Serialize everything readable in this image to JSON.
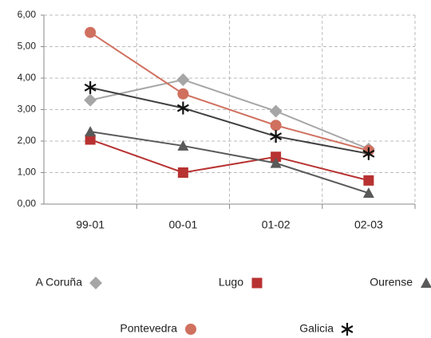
{
  "chart_data": {
    "type": "line",
    "categories": [
      "99-01",
      "00-01",
      "01-02",
      "02-03"
    ],
    "series": [
      {
        "name": "A Coruña",
        "color": "#a6a6a6",
        "marker": "diamond",
        "values": [
          3.3,
          3.95,
          2.95,
          1.75
        ]
      },
      {
        "name": "Lugo",
        "color": "#b83232",
        "marker": "square",
        "values": [
          2.05,
          1.0,
          1.5,
          0.75
        ]
      },
      {
        "name": "Ourense",
        "color": "#595959",
        "marker": "triangle",
        "values": [
          2.3,
          1.85,
          1.3,
          0.35
        ]
      },
      {
        "name": "Pontevedra",
        "color": "#d0705f",
        "marker": "circle",
        "values": [
          5.45,
          3.5,
          2.5,
          1.7
        ]
      },
      {
        "name": "Galicia",
        "color": "#404040",
        "marker": "asterisk",
        "values": [
          3.7,
          3.05,
          2.15,
          1.6
        ]
      }
    ],
    "ylim": [
      0,
      6
    ],
    "yticks": [
      {
        "value": 0,
        "label": "0,00"
      },
      {
        "value": 1,
        "label": "1,00"
      },
      {
        "value": 2,
        "label": "2,00"
      },
      {
        "value": 3,
        "label": "3,00"
      },
      {
        "value": 4,
        "label": "4,00"
      },
      {
        "value": 5,
        "label": "5,00"
      },
      {
        "value": 6,
        "label": "6,00"
      }
    ],
    "grid": true,
    "legend": "bottom"
  }
}
